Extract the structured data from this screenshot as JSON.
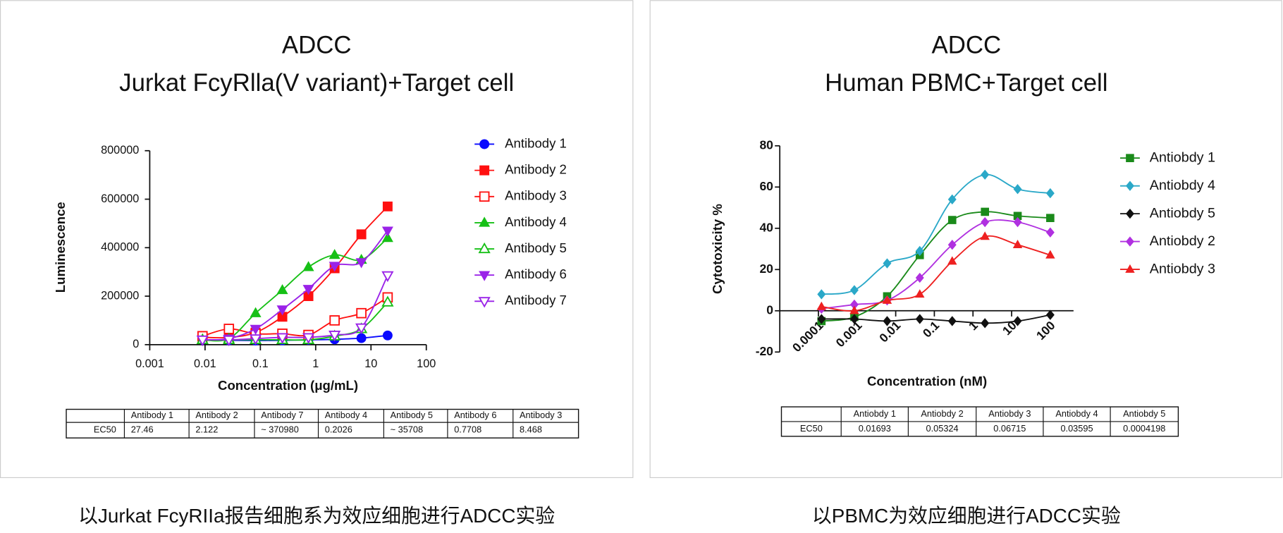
{
  "chart_data": [
    {
      "type": "scatter",
      "title": "ADCC",
      "subtitle": "Jurkat FcyRlla(V variant)+Target cell",
      "x_label": "Concentration (μg/mL)",
      "y_label": "Luminescence",
      "x_scale": "log",
      "fit_curve": true,
      "xlim": [
        0.001,
        100
      ],
      "xticks": [
        0.001,
        0.01,
        0.1,
        1,
        10,
        100
      ],
      "ylim": [
        0,
        800000
      ],
      "yticks": [
        0,
        200000,
        400000,
        600000,
        800000
      ],
      "x": [
        0.009,
        0.027,
        0.082,
        0.25,
        0.74,
        2.2,
        6.7,
        20
      ],
      "series": [
        {
          "name": "Antibody 1",
          "color": "#0a0aff",
          "marker": "circle",
          "values": [
            20000,
            18000,
            17000,
            18000,
            20000,
            22000,
            27000,
            38000
          ]
        },
        {
          "name": "Antibody 2",
          "color": "#ff1010",
          "marker": "square",
          "values": [
            30000,
            30000,
            50000,
            115000,
            200000,
            315000,
            455000,
            570000
          ]
        },
        {
          "name": "Antibody 3",
          "color": "#ff1010",
          "marker": "square-open",
          "values": [
            35000,
            65000,
            45000,
            45000,
            40000,
            100000,
            130000,
            195000
          ]
        },
        {
          "name": "Antibody 4",
          "color": "#16c016",
          "marker": "triangle",
          "values": [
            20000,
            25000,
            130000,
            225000,
            320000,
            370000,
            350000,
            440000
          ]
        },
        {
          "name": "Antibody 5",
          "color": "#16c016",
          "marker": "triangle-open",
          "values": [
            20000,
            20000,
            20000,
            20000,
            20000,
            35000,
            65000,
            175000
          ]
        },
        {
          "name": "Antibody 6",
          "color": "#9a22e8",
          "marker": "triangle-down",
          "values": [
            20000,
            25000,
            65000,
            145000,
            230000,
            325000,
            340000,
            470000
          ]
        },
        {
          "name": "Antibody 7",
          "color": "#9a22e8",
          "marker": "triangle-down-open",
          "values": [
            20000,
            20000,
            25000,
            30000,
            30000,
            40000,
            70000,
            285000
          ]
        }
      ]
    },
    {
      "type": "scatter",
      "title": "ADCC",
      "subtitle": "Human PBMC+Target cell",
      "x_label": "Concentration (nM)",
      "y_label": "Cytotoxicity %",
      "x_scale": "log",
      "fit_curve": true,
      "xlim": [
        1e-05,
        400
      ],
      "xticks": [
        0.0001,
        0.001,
        0.01,
        0.1,
        1,
        10,
        100
      ],
      "ylim": [
        -20,
        80
      ],
      "yticks": [
        -20,
        0,
        20,
        40,
        60,
        80
      ],
      "x": [
        0.00012,
        0.00085,
        0.006,
        0.042,
        0.29,
        2.04,
        14.3,
        100
      ],
      "series": [
        {
          "name": "Antiobdy 1",
          "color": "#1a8a1a",
          "marker": "square",
          "values": [
            -5,
            -3,
            7,
            27,
            44,
            48,
            46,
            45
          ]
        },
        {
          "name": "Antiobdy 4",
          "color": "#2aa8c8",
          "marker": "diamond",
          "values": [
            8,
            10,
            23,
            29,
            54,
            66,
            59,
            57
          ]
        },
        {
          "name": "Antiobdy 5",
          "color": "#111111",
          "marker": "diamond",
          "values": [
            -4,
            -4,
            -5,
            -4,
            -5,
            -6,
            -5,
            -2
          ]
        },
        {
          "name": "Antiobdy 2",
          "color": "#b030e0",
          "marker": "diamond",
          "values": [
            1,
            3,
            5,
            16,
            32,
            43,
            43,
            38
          ]
        },
        {
          "name": "Antiobdy 3",
          "color": "#ee2020",
          "marker": "triangle",
          "values": [
            2,
            0,
            5,
            8,
            24,
            36,
            32,
            27
          ]
        }
      ]
    }
  ],
  "tables": [
    {
      "header": [
        "Antibody 1",
        "Antibody 2",
        "Antibody 7",
        "Antibody 4",
        "Antibody 5",
        "Antibody 6",
        "Antibody 3"
      ],
      "rows": [
        {
          "label": "EC50",
          "values": [
            "27.46",
            "2.122",
            "~ 370980",
            "0.2026",
            "~ 35708",
            "0.7708",
            "8.468"
          ]
        }
      ]
    },
    {
      "header": [
        "Antiobdy 1",
        "Antiobdy 2",
        "Antiobdy 3",
        "Antiobdy 4",
        "Antiobdy 5"
      ],
      "rows": [
        {
          "label": "EC50",
          "values": [
            "0.01693",
            "0.05324",
            "0.06715",
            "0.03595",
            "0.0004198"
          ]
        }
      ]
    }
  ],
  "captions": [
    "以Jurkat FcyRIIa报告细胞系为效应细胞进行ADCC实验",
    "以PBMC为效应细胞进行ADCC实验"
  ]
}
